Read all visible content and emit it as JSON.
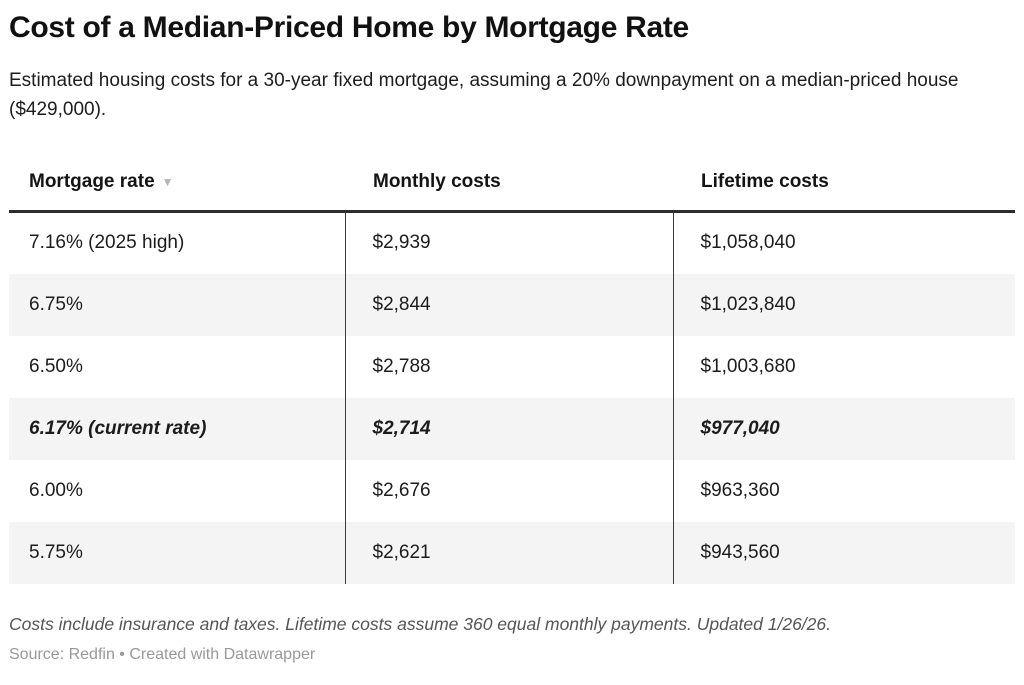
{
  "header": {
    "title": "Cost of a Median-Priced Home by Mortgage Rate",
    "subtitle": "Estimated housing costs for a 30-year fixed mortgage, assuming a 20% downpayment on a median-priced house ($429,000)."
  },
  "table": {
    "columns": [
      {
        "label": "Mortgage rate",
        "sortable": true,
        "sort_icon": "▼",
        "sort_direction": "desc"
      },
      {
        "label": "Monthly costs"
      },
      {
        "label": "Lifetime costs"
      }
    ],
    "rows": [
      {
        "cells": [
          "7.16% (2025 high)",
          "$2,939",
          "$1,058,040"
        ],
        "emphasis": false
      },
      {
        "cells": [
          "6.75%",
          "$2,844",
          "$1,023,840"
        ],
        "emphasis": false
      },
      {
        "cells": [
          "6.50%",
          "$2,788",
          "$1,003,680"
        ],
        "emphasis": false
      },
      {
        "cells": [
          "6.17% (current rate)",
          "$2,714",
          "$977,040"
        ],
        "emphasis": true
      },
      {
        "cells": [
          "6.00%",
          "$2,676",
          "$963,360"
        ],
        "emphasis": false
      },
      {
        "cells": [
          "5.75%",
          "$2,621",
          "$943,560"
        ],
        "emphasis": false
      }
    ]
  },
  "footer": {
    "notes": "Costs include insurance and taxes. Lifetime costs assume 360 equal monthly payments. Updated 1/26/26.",
    "source": "Source: Redfin • Created with Datawrapper"
  },
  "colors": {
    "text": "#1a1a1a",
    "zebra": "#f4f4f4",
    "border_heavy": "#2d2d2d",
    "border_divider": "#3c3c3c",
    "notes_text": "#555555",
    "source_text": "#999999",
    "sort_icon": "#b3b3b3"
  },
  "chart_data": {
    "type": "table",
    "title": "Cost of a Median-Priced Home by Mortgage Rate",
    "subtitle": "Estimated housing costs for a 30-year fixed mortgage, assuming a 20% downpayment on a median-priced house ($429,000).",
    "columns": [
      "Mortgage rate",
      "Monthly costs",
      "Lifetime costs"
    ],
    "rows": [
      [
        "7.16% (2025 high)",
        2939,
        1058040
      ],
      [
        "6.75%",
        2844,
        1023840
      ],
      [
        "6.50%",
        2788,
        1003680
      ],
      [
        "6.17% (current rate)",
        2714,
        977040
      ],
      [
        "6.00%",
        2676,
        963360
      ],
      [
        "5.75%",
        2621,
        943560
      ]
    ],
    "highlighted_row": "6.17% (current rate)",
    "sort": {
      "column": "Mortgage rate",
      "direction": "desc"
    },
    "notes": "Costs include insurance and taxes. Lifetime costs assume 360 equal monthly payments. Updated 1/26/26.",
    "source": "Source: Redfin"
  }
}
